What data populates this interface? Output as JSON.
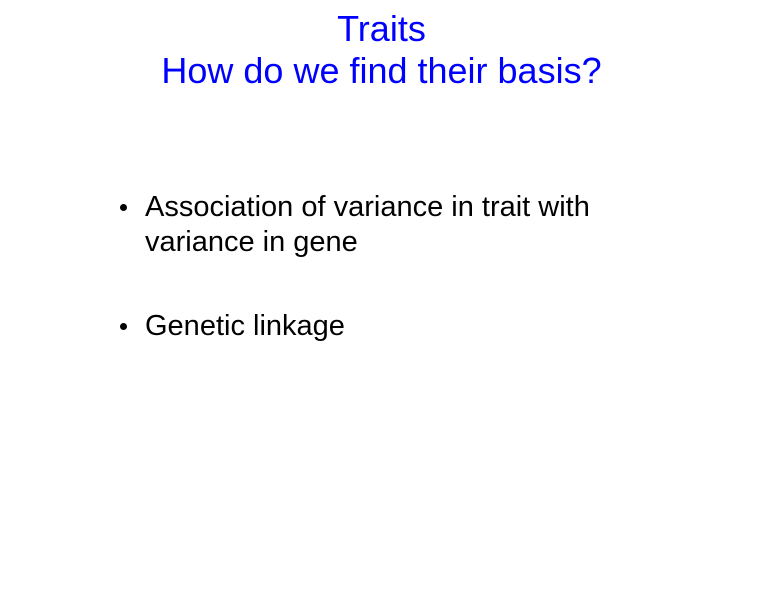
{
  "colors": {
    "title": "#0000ff",
    "body": "#000000",
    "bullet": "#000000",
    "background": "#ffffff"
  },
  "typography": {
    "title_fontsize": 36,
    "body_fontsize": 29,
    "font_family": "Arial"
  },
  "title": {
    "line1": "Traits",
    "line2": "How do we find their basis?"
  },
  "bullets": [
    {
      "text": "Association of variance in trait with variance in gene"
    },
    {
      "text": "Genetic linkage"
    }
  ]
}
